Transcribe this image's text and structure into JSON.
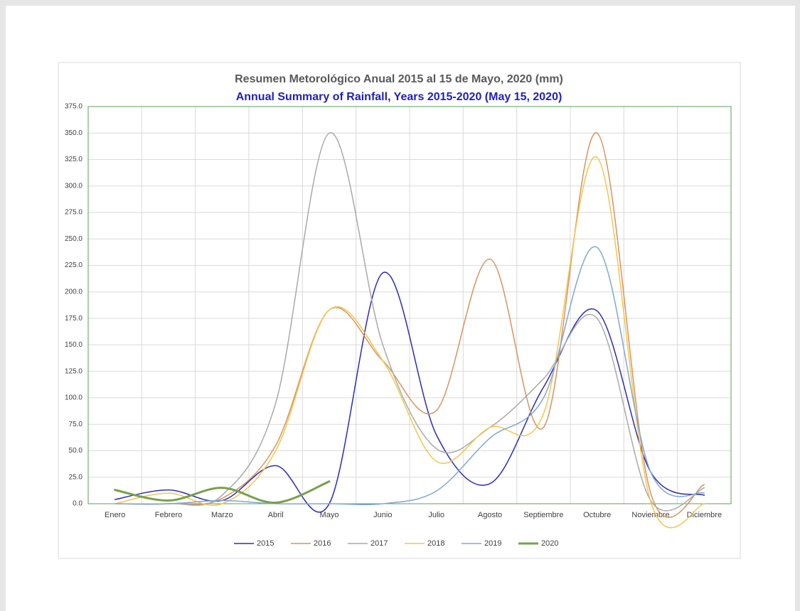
{
  "chart_data": {
    "type": "line",
    "title": "Resumen Metorológico Anual 2015 al 15 de Mayo, 2020 (mm)",
    "subtitle": "Annual Summary of Rainfall, Years 2015-2020 (May 15, 2020)",
    "categories": [
      "Enero",
      "Febrero",
      "Marzo",
      "Abril",
      "Mayo",
      "Junio",
      "Julio",
      "Agosto",
      "Septiembre",
      "Octubre",
      "Noviembre",
      "Diciembre"
    ],
    "series": [
      {
        "name": "2015",
        "color": "#2b2bbf",
        "values": [
          4,
          13,
          3,
          36,
          0,
          218,
          65,
          19,
          110,
          182,
          30,
          8
        ]
      },
      {
        "name": "2016",
        "color": "#d9925f",
        "values": [
          0,
          0,
          5,
          55,
          183,
          135,
          88,
          231,
          72,
          350,
          10,
          18
        ]
      },
      {
        "name": "2017",
        "color": "#a9a9a9",
        "values": [
          0,
          0,
          8,
          95,
          350,
          150,
          52,
          72,
          118,
          175,
          3,
          15
        ]
      },
      {
        "name": "2018",
        "color": "#f3c64a",
        "values": [
          0,
          10,
          0,
          50,
          183,
          135,
          40,
          72,
          85,
          327,
          2,
          0
        ]
      },
      {
        "name": "2019",
        "color": "#7fa8cf",
        "values": [
          0,
          0,
          3,
          0,
          0,
          0,
          12,
          62,
          100,
          242,
          30,
          10
        ]
      },
      {
        "name": "2020",
        "color": "#77a04a",
        "values": [
          13,
          3,
          15,
          1,
          21,
          null,
          null,
          null,
          null,
          null,
          null,
          null
        ]
      }
    ],
    "ylim": [
      0,
      375
    ],
    "yticks": [
      {
        "value": 0,
        "label": "0.0"
      },
      {
        "value": 25,
        "label": "25.0"
      },
      {
        "value": 50,
        "label": "50.0"
      },
      {
        "value": 75,
        "label": "75.0"
      },
      {
        "value": 100,
        "label": "100.0"
      },
      {
        "value": 125,
        "label": "125.0"
      },
      {
        "value": 150,
        "label": "150.0"
      },
      {
        "value": 175,
        "label": "175.0"
      },
      {
        "value": 200,
        "label": "200.0"
      },
      {
        "value": 225,
        "label": "225.0"
      },
      {
        "value": 250,
        "label": "250.0"
      },
      {
        "value": 275,
        "label": "275.0"
      },
      {
        "value": 300,
        "label": "300.0"
      },
      {
        "value": 325,
        "label": "325.0"
      },
      {
        "value": 350,
        "label": "350.0"
      },
      {
        "value": 375,
        "label": "375.0"
      }
    ],
    "grid": true,
    "legend": "bottom"
  }
}
